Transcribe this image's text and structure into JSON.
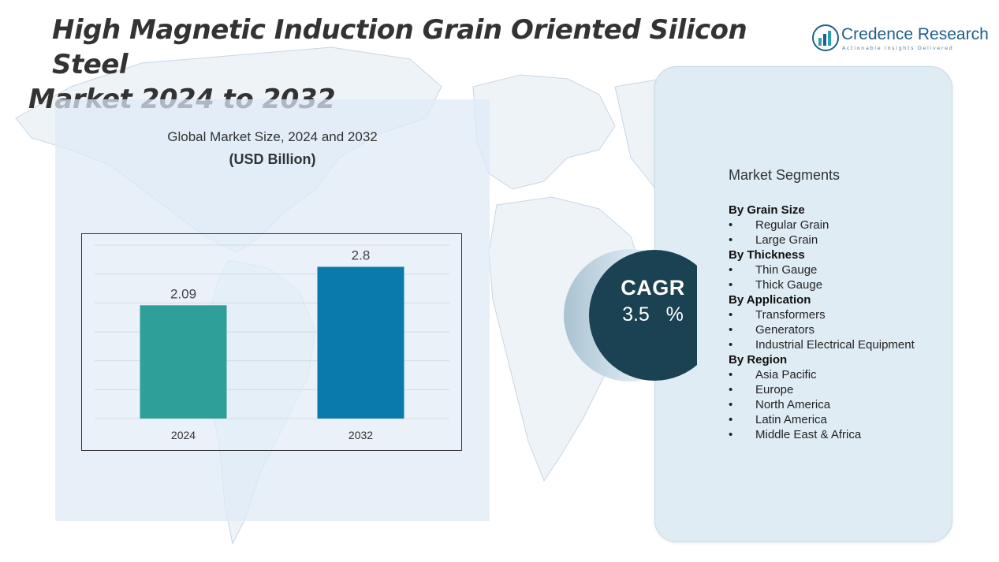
{
  "title": {
    "line1": "High Magnetic Induction Grain Oriented Silicon Steel",
    "line2": "Market 2024 to 2032"
  },
  "logo": {
    "name": "Credence Research",
    "tagline": "Actionable Insights Delivered",
    "icon": "bar-chart-logo-icon"
  },
  "chart_title": {
    "line1": "Global Market Size, 2024 and 2032",
    "line2": "(USD Billion)"
  },
  "chart_data": {
    "type": "bar",
    "title": "Global Market Size, 2024 and 2032",
    "ylabel": "(USD Billion)",
    "xlabel": "",
    "categories": [
      "2024",
      "2032"
    ],
    "values": [
      2.09,
      2.8
    ],
    "data_labels": [
      "2.09",
      "2.8"
    ],
    "ylim": [
      0,
      3.2
    ],
    "grid": true,
    "colors": [
      "#2e9f99",
      "#0a7aad"
    ]
  },
  "cagr": {
    "label": "CAGR",
    "value": "3.5   %",
    "colors": {
      "circle": "#1b4252",
      "ring": "#c9dde9"
    }
  },
  "segments": {
    "title": "Market Segments",
    "bullet": "•",
    "groups": [
      {
        "title": "By Grain Size",
        "items": [
          "Regular Grain",
          "Large Grain"
        ]
      },
      {
        "title": "By Thickness",
        "items": [
          "Thin Gauge",
          "Thick Gauge"
        ]
      },
      {
        "title": "By Application",
        "items": [
          "Transformers",
          "Generators",
          "Industrial Electrical Equipment"
        ]
      },
      {
        "title": "By Region",
        "items": [
          "Asia Pacific",
          "Europe",
          "North America",
          "Latin America",
          "Middle East & Africa"
        ]
      }
    ]
  }
}
